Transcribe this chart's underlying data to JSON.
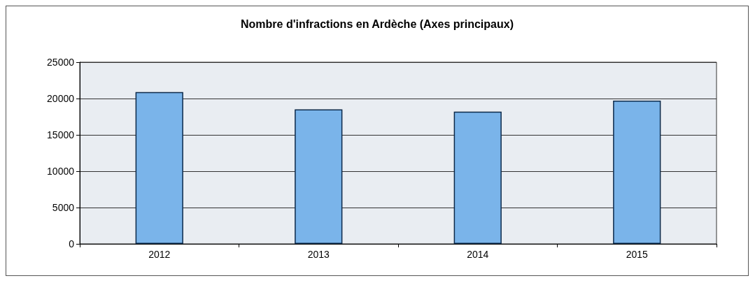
{
  "chart_data": {
    "type": "bar",
    "title": "Nombre d'infractions en Ardèche (Axes principaux)",
    "categories": [
      "2012",
      "2013",
      "2014",
      "2015"
    ],
    "values": [
      20900,
      18500,
      18200,
      19700
    ],
    "color": "#7ab4ea",
    "ylim": [
      0,
      25000
    ],
    "yticks": [
      0,
      5000,
      10000,
      15000,
      20000,
      25000
    ],
    "grid": "y"
  }
}
